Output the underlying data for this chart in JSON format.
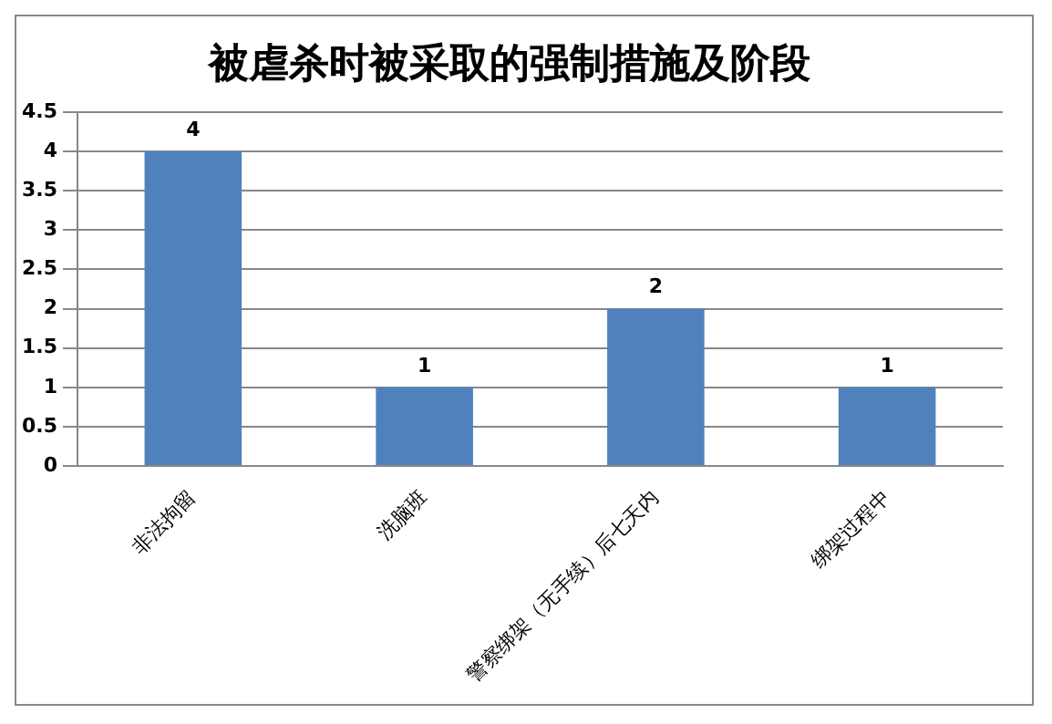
{
  "chart_data": {
    "type": "bar",
    "title": "被虐杀时被采取的强制措施及阶段",
    "categories": [
      "非法拘留",
      "洗脑班",
      "警察绑架（无手续）后七天内",
      "绑架过程中"
    ],
    "values": [
      4,
      1,
      2,
      1
    ],
    "color": "#4f81bd",
    "ylim": [
      0,
      4.5
    ],
    "yticks": [
      0,
      0.5,
      1,
      1.5,
      2,
      2.5,
      3,
      3.5,
      4,
      4.5
    ],
    "grid": "y",
    "data_labels": true
  }
}
